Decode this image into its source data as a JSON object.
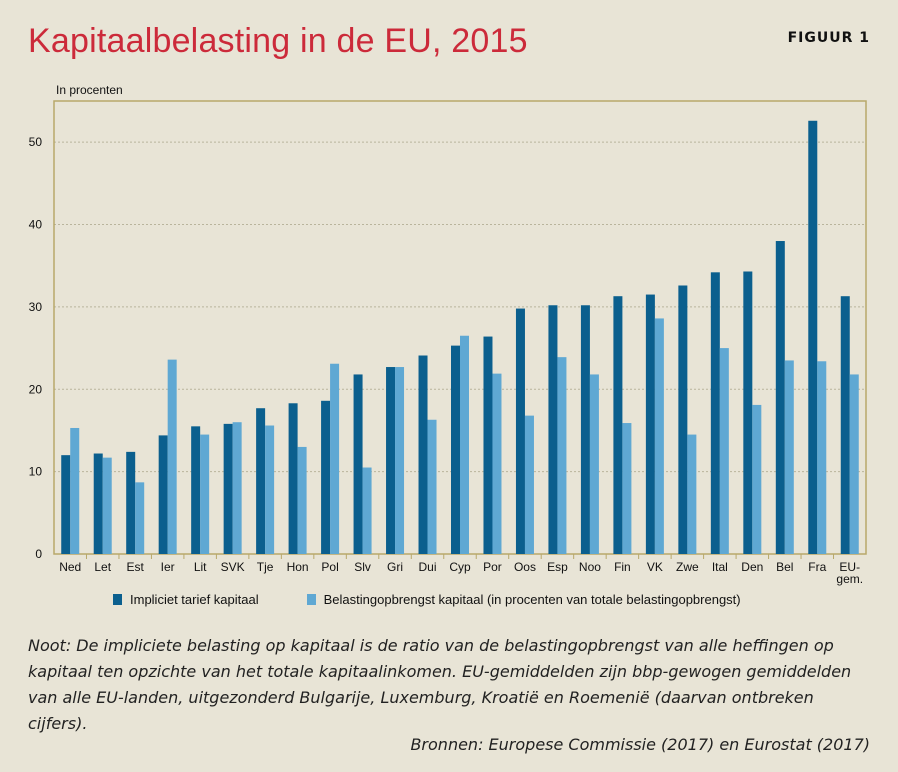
{
  "title": "Kapitaalbelasting in de EU, 2015",
  "figure_label": "FIGUUR 1",
  "unit_label": "In procenten",
  "note": "Noot: De impliciete belasting op kapitaal is de ratio van de belastingopbrengst van alle heffingen op kapitaal ten opzichte van het totale kapitaalinkomen. EU-gemiddelden zijn bbp-gewogen gemiddelden van alle EU-landen, uitgezonderd Bulgarije, Luxemburg, Kroatië en Roemenië (daarvan ontbreken cijfers).",
  "source": "Bronnen: Europese Commissie (2017) en Eurostat (2017)",
  "colors": {
    "series1": "#0b5f8e",
    "series2": "#5fa8d3",
    "frame": "#b8a86a",
    "title": "#cc2a3a"
  },
  "chart_data": {
    "type": "bar",
    "categories": [
      "Ned",
      "Let",
      "Est",
      "Ier",
      "Lit",
      "SVK",
      "Tje",
      "Hon",
      "Pol",
      "Slv",
      "Gri",
      "Dui",
      "Cyp",
      "Por",
      "Oos",
      "Esp",
      "Noo",
      "Fin",
      "VK",
      "Zwe",
      "Ital",
      "Den",
      "Bel",
      "Fra",
      "EU-gem."
    ],
    "series": [
      {
        "name": "Impliciet tarief kapitaal",
        "values": [
          12.0,
          12.2,
          12.4,
          14.4,
          15.5,
          15.8,
          17.7,
          18.3,
          18.6,
          21.8,
          22.7,
          24.1,
          25.3,
          26.4,
          29.8,
          30.2,
          30.2,
          31.3,
          31.5,
          32.6,
          34.2,
          34.3,
          38.0,
          52.6,
          31.3
        ]
      },
      {
        "name": "Belastingopbrengst kapitaal (in procenten van totale belastingopbrengst)",
        "values": [
          15.3,
          11.7,
          8.7,
          23.6,
          14.5,
          16.0,
          15.6,
          13.0,
          23.1,
          10.5,
          22.7,
          16.3,
          26.5,
          21.9,
          16.8,
          23.9,
          21.8,
          15.9,
          28.6,
          14.5,
          25.0,
          18.1,
          23.5,
          23.4,
          21.8
        ]
      }
    ],
    "yticks": [
      0,
      10,
      20,
      30,
      40,
      50
    ],
    "ylim": [
      0,
      55
    ],
    "grid": true,
    "legend_position": "bottom"
  }
}
